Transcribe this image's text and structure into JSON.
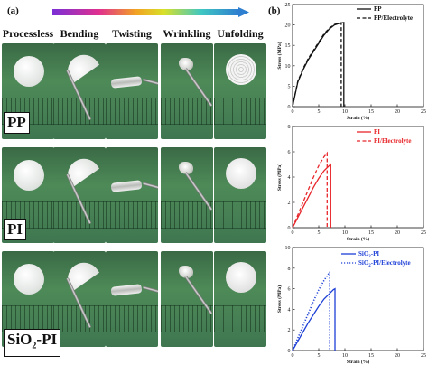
{
  "panel_a_label": "(a)",
  "panel_b_label": "(b)",
  "columns": [
    "Processless",
    "Bending",
    "Twisting",
    "Wrinkling",
    "Unfolding"
  ],
  "materials": [
    {
      "name": "PP",
      "main": "PP",
      "sub": ""
    },
    {
      "name": "PI",
      "main": "PI",
      "sub": ""
    },
    {
      "name": "SiO2-PI",
      "main": "SiO",
      "sub": "2",
      "rest": "-PI"
    }
  ],
  "chart_data": [
    {
      "type": "line",
      "ylabel": "Stress (MPa)",
      "xlabel": "Strain (%)",
      "xlim": [
        0,
        25
      ],
      "ylim": [
        0,
        25
      ],
      "xticks": [
        0,
        5,
        10,
        15,
        20,
        25
      ],
      "yticks": [
        0,
        5,
        10,
        15,
        20,
        25
      ],
      "series": [
        {
          "name": "PP",
          "style": "solid",
          "color": "#111111",
          "points": [
            [
              0,
              0
            ],
            [
              0.5,
              3
            ],
            [
              1,
              6
            ],
            [
              2,
              9
            ],
            [
              3,
              11.5
            ],
            [
              4,
              13.5
            ],
            [
              5,
              15.5
            ],
            [
              6,
              17.5
            ],
            [
              7,
              19
            ],
            [
              8,
              20
            ],
            [
              9,
              20.4
            ],
            [
              9.8,
              20.6
            ],
            [
              9.8,
              0
            ]
          ]
        },
        {
          "name": "PP/Electrolyte",
          "style": "dashed",
          "color": "#111111",
          "points": [
            [
              0,
              0
            ],
            [
              0.5,
              3.2
            ],
            [
              1,
              6.2
            ],
            [
              2,
              9.3
            ],
            [
              3,
              11.8
            ],
            [
              4,
              13.8
            ],
            [
              5,
              15.8
            ],
            [
              6,
              17.8
            ],
            [
              7,
              19.2
            ],
            [
              8,
              20.1
            ],
            [
              8.8,
              20.4
            ],
            [
              9.3,
              20.5
            ],
            [
              9.3,
              0
            ]
          ]
        }
      ]
    },
    {
      "type": "line",
      "ylabel": "Stress (MPa)",
      "xlabel": "Strain (%)",
      "xlim": [
        0,
        25
      ],
      "ylim": [
        0,
        8
      ],
      "xticks": [
        0,
        5,
        10,
        15,
        20,
        25
      ],
      "yticks": [
        0,
        2,
        4,
        6,
        8
      ],
      "series": [
        {
          "name": "PI",
          "style": "solid",
          "color": "#e8262a",
          "points": [
            [
              0,
              0
            ],
            [
              1,
              0.8
            ],
            [
              2,
              1.6
            ],
            [
              3,
              2.4
            ],
            [
              4,
              3.2
            ],
            [
              5,
              3.9
            ],
            [
              6,
              4.5
            ],
            [
              7,
              4.9
            ],
            [
              7.3,
              5.0
            ],
            [
              7.3,
              0
            ]
          ]
        },
        {
          "name": "PI/Electrolyte",
          "style": "dashed",
          "color": "#e8262a",
          "points": [
            [
              0,
              0
            ],
            [
              1,
              1.0
            ],
            [
              2,
              2.0
            ],
            [
              3,
              3.0
            ],
            [
              4,
              4.0
            ],
            [
              5,
              4.9
            ],
            [
              6,
              5.6
            ],
            [
              6.6,
              5.9
            ],
            [
              6.6,
              0
            ]
          ]
        }
      ]
    },
    {
      "type": "line",
      "ylabel": "Stress (MPa)",
      "xlabel": "Strain (%)",
      "xlim": [
        0,
        25
      ],
      "ylim": [
        0,
        10
      ],
      "xticks": [
        0,
        5,
        10,
        15,
        20,
        25
      ],
      "yticks": [
        0,
        2,
        4,
        6,
        8,
        10
      ],
      "series": [
        {
          "name": "SiO2-PI",
          "label_main": "SiO",
          "label_sub": "2",
          "label_rest": "-PI",
          "style": "solid",
          "color": "#1d3fd6",
          "points": [
            [
              0,
              0
            ],
            [
              1,
              0.9
            ],
            [
              2,
              1.8
            ],
            [
              3,
              2.7
            ],
            [
              4,
              3.5
            ],
            [
              5,
              4.3
            ],
            [
              6,
              5.0
            ],
            [
              7,
              5.5
            ],
            [
              7.8,
              5.9
            ],
            [
              8.1,
              6.0
            ],
            [
              8.1,
              0
            ]
          ]
        },
        {
          "name": "SiO2-PI/Electrolyte",
          "label_main": "SiO",
          "label_sub": "2",
          "label_rest": "-PI/Electrolyte",
          "style": "dotted",
          "color": "#1d3fd6",
          "points": [
            [
              0,
              0
            ],
            [
              1,
              1.2
            ],
            [
              2,
              2.4
            ],
            [
              3,
              3.6
            ],
            [
              4,
              4.8
            ],
            [
              5,
              5.9
            ],
            [
              6,
              6.8
            ],
            [
              6.8,
              7.4
            ],
            [
              7.1,
              7.6
            ],
            [
              7.1,
              0
            ]
          ]
        }
      ]
    }
  ]
}
